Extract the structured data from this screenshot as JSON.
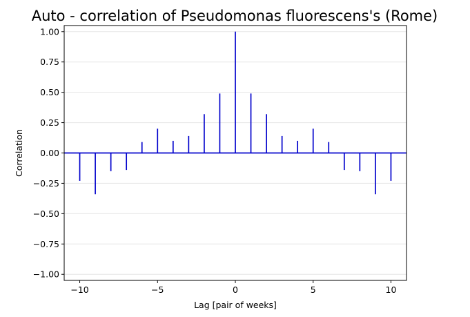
{
  "chart_data": {
    "type": "bar",
    "title": "Auto - correlation of Pseudomonas fluorescens's (Rome)",
    "xlabel": "Lag [pair of weeks]",
    "ylabel": "Correlation",
    "xlim": [
      -11,
      11
    ],
    "ylim": [
      -1.05,
      1.05
    ],
    "x_ticks": [
      -10,
      -5,
      0,
      5,
      10
    ],
    "x_tick_labels": [
      "−10",
      "−5",
      "0",
      "5",
      "10"
    ],
    "y_ticks": [
      -1.0,
      -0.75,
      -0.5,
      -0.25,
      0.0,
      0.25,
      0.5,
      0.75,
      1.0
    ],
    "y_tick_labels": [
      "−1.00",
      "−0.75",
      "−0.50",
      "−0.25",
      "0.00",
      "0.25",
      "0.50",
      "0.75",
      "1.00"
    ],
    "grid": "horizontal",
    "colors": {
      "stem": "#0000cc",
      "grid": "#e6e6e6"
    },
    "lags": [
      -10,
      -9,
      -8,
      -7,
      -6,
      -5,
      -4,
      -3,
      -2,
      -1,
      0,
      1,
      2,
      3,
      4,
      5,
      6,
      7,
      8,
      9,
      10
    ],
    "values": [
      -0.23,
      -0.34,
      -0.15,
      -0.14,
      0.09,
      0.2,
      0.1,
      0.14,
      0.32,
      0.49,
      1.0,
      0.49,
      0.32,
      0.14,
      0.1,
      0.2,
      0.09,
      -0.14,
      -0.15,
      -0.34,
      -0.23
    ]
  }
}
